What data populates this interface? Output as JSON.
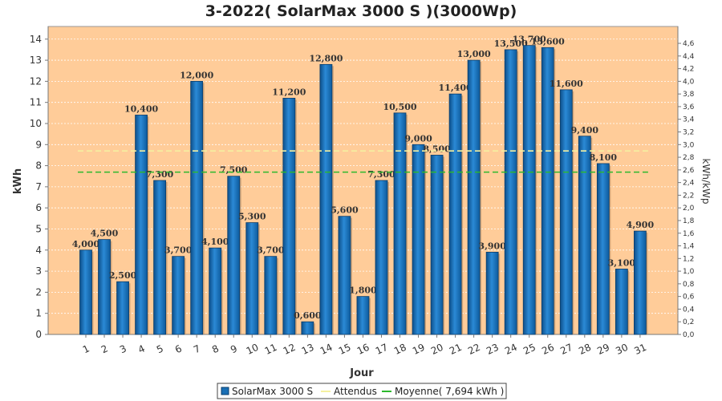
{
  "chart_data": {
    "type": "bar",
    "title": "3-2022( SolarMax 3000 S )(3000Wp)",
    "xlabel": "Jour",
    "ylabel": "kWh",
    "y2label": "kWh/kWp",
    "ylim": [
      0,
      14.6
    ],
    "y_ticks": [
      0,
      1,
      2,
      3,
      4,
      5,
      6,
      7,
      8,
      9,
      10,
      11,
      12,
      13,
      14
    ],
    "y2lim": [
      0,
      4.8667
    ],
    "y2_ticks": [
      "0,0",
      "0,2",
      "0,4",
      "0,6",
      "0,8",
      "1,0",
      "1,2",
      "1,4",
      "1,6",
      "1,8",
      "2,0",
      "2,2",
      "2,4",
      "2,6",
      "2,8",
      "3,0",
      "3,2",
      "3,4",
      "3,6",
      "3,8",
      "4,0",
      "4,2",
      "4,4",
      "4,6"
    ],
    "categories": [
      "1",
      "2",
      "3",
      "4",
      "5",
      "6",
      "7",
      "8",
      "9",
      "10",
      "11",
      "12",
      "13",
      "14",
      "15",
      "16",
      "17",
      "18",
      "19",
      "20",
      "21",
      "22",
      "23",
      "24",
      "25",
      "26",
      "27",
      "28",
      "29",
      "30",
      "31"
    ],
    "series": [
      {
        "name": "SolarMax 3000 S",
        "color": "#1a6fb5",
        "values": [
          4.0,
          4.5,
          2.5,
          10.4,
          7.3,
          3.7,
          12.0,
          4.1,
          7.5,
          5.3,
          3.7,
          11.2,
          0.6,
          12.8,
          5.6,
          1.8,
          7.3,
          10.5,
          9.0,
          8.5,
          11.4,
          13.0,
          3.9,
          13.5,
          13.7,
          13.6,
          11.6,
          9.4,
          8.1,
          3.1,
          4.9
        ],
        "labels": [
          "4,000",
          "4,500",
          "2,500",
          "10,400",
          "7,300",
          "3,700",
          "12,000",
          "4,100",
          "7,500",
          "5,300",
          "3,700",
          "11,200",
          "0,600",
          "12,800",
          "5,600",
          "1,800",
          "7,300",
          "10,500",
          "9,000",
          "8,500",
          "11,400",
          "13,000",
          "3,900",
          "13,500",
          "13,700",
          "13,600",
          "11,600",
          "9,400",
          "8,100",
          "3,100",
          "4,900"
        ]
      }
    ],
    "reference_lines": [
      {
        "name": "Attendus",
        "value": 8.7,
        "color": "#f5f0a0",
        "style": "dashed"
      },
      {
        "name": "Moyenne( 7,694 kWh )",
        "value": 7.694,
        "color": "#2db82d",
        "style": "dashed"
      }
    ],
    "legend_position": "bottom",
    "plot_background": "#ffcc99",
    "grid": true
  }
}
